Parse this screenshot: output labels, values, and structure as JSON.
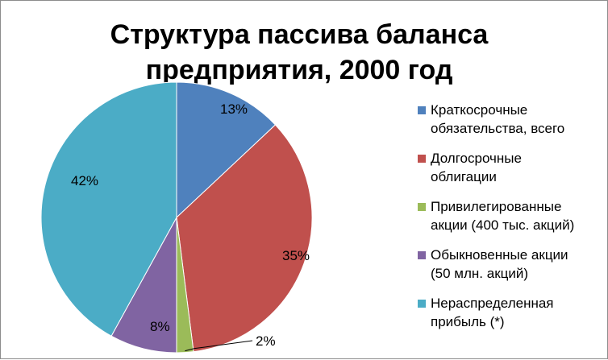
{
  "chart_data": {
    "type": "pie",
    "title": [
      "Структура пассива баланса",
      "предприятия, 2000 год"
    ],
    "slices": [
      {
        "name": "Краткосрочные\nобязательства, всего",
        "value": 13,
        "label": "13%",
        "color": "#4f81bd"
      },
      {
        "name": "Долгосрочные\nоблигации",
        "value": 35,
        "label": "35%",
        "color": "#c0504d"
      },
      {
        "name": "Привилегированные\nакции (400 тыс. акций)",
        "value": 2,
        "label": "2%",
        "color": "#9bbb59"
      },
      {
        "name": "Обыкновенные акции\n(50 млн. акций)",
        "value": 8,
        "label": "8%",
        "color": "#8064a2"
      },
      {
        "name": "Нераспределенная\nприбыль (*)",
        "value": 42,
        "label": "42%",
        "color": "#4bacc6"
      }
    ],
    "start_angle": "12 o'clock",
    "direction": "clockwise",
    "legend_position": "right"
  }
}
